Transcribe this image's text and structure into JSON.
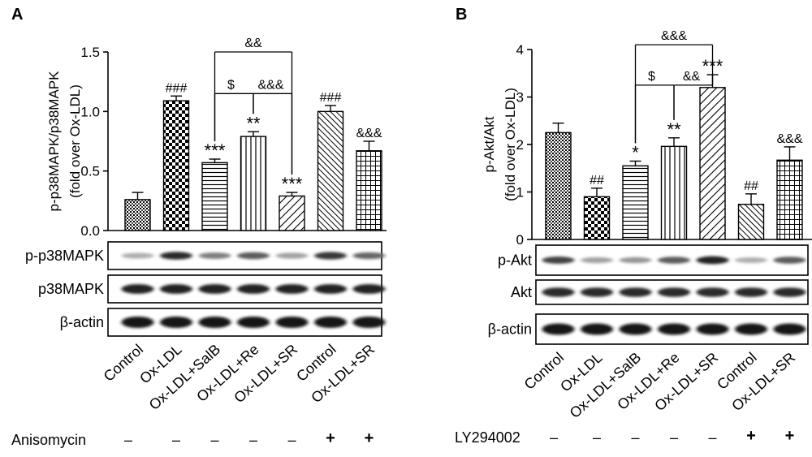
{
  "chart_data": [
    {
      "panel": "A",
      "type": "bar",
      "ylabel": "p-p38MAPK/p38MAPK\n(fold over Ox-LDL)",
      "ylim": [
        0,
        1.5
      ],
      "yticks": [
        "0.0",
        "0.5",
        "1.0",
        "1.5"
      ],
      "categories": [
        "Control",
        "Ox-LDL",
        "Ox-LDL+SalB",
        "Ox-LDL+Re",
        "Ox-LDL+SR",
        "Control",
        "Ox-LDL+SR"
      ],
      "values": [
        0.26,
        1.09,
        0.57,
        0.79,
        0.29,
        1.0,
        0.67
      ],
      "errors": [
        0.06,
        0.04,
        0.03,
        0.04,
        0.03,
        0.05,
        0.08
      ],
      "patterns": [
        "dots",
        "checker",
        "hlines",
        "vlines",
        "diag",
        "diag-dense",
        "grid"
      ],
      "stars": [
        "",
        "###",
        "***",
        "**",
        "***",
        "###",
        "&&&"
      ],
      "brackets": [
        {
          "from": 2,
          "to": 4,
          "label": "&&",
          "level": 1.5
        },
        {
          "from": 2,
          "to": 3,
          "label": "$",
          "level": 1.15,
          "label_side": "left"
        },
        {
          "from": 3,
          "to": 4,
          "label": "&&&",
          "level": 1.15,
          "label_side": "right"
        }
      ],
      "blots": [
        "p-p38MAPK",
        "p38MAPK",
        "β-actin"
      ],
      "treatment": {
        "label": "Anisomycin",
        "marks": [
          "–",
          "–",
          "–",
          "–",
          "–",
          "+",
          "+"
        ]
      }
    },
    {
      "panel": "B",
      "type": "bar",
      "ylabel": "p-Akt/Akt\n(fold over Ox-LDL)",
      "ylim": [
        0,
        4
      ],
      "yticks": [
        "0",
        "1",
        "2",
        "3",
        "4"
      ],
      "categories": [
        "Control",
        "Ox-LDL",
        "Ox-LDL+SalB",
        "Ox-LDL+Re",
        "Ox-LDL+SR",
        "Control",
        "Ox-LDL+SR"
      ],
      "values": [
        2.25,
        0.9,
        1.55,
        1.96,
        3.2,
        0.74,
        1.67
      ],
      "errors": [
        0.2,
        0.18,
        0.1,
        0.18,
        0.27,
        0.22,
        0.28
      ],
      "patterns": [
        "dots",
        "checker",
        "hlines",
        "vlines",
        "diag",
        "diag-dense",
        "grid"
      ],
      "stars": [
        "",
        "##",
        "*",
        "**",
        "***",
        "##",
        "&&&"
      ],
      "brackets": [
        {
          "from": 2,
          "to": 4,
          "label": "&&&",
          "level": 4.1
        },
        {
          "from": 2,
          "to": 3,
          "label": "$",
          "level": 3.25,
          "label_side": "left"
        },
        {
          "from": 3,
          "to": 4,
          "label": "&&",
          "level": 3.25,
          "label_side": "right"
        }
      ],
      "blots": [
        "p-Akt",
        "Akt",
        "β-actin"
      ],
      "treatment": {
        "label": "LY294002",
        "marks": [
          "–",
          "–",
          "–",
          "–",
          "–",
          "+",
          "+"
        ]
      }
    }
  ]
}
